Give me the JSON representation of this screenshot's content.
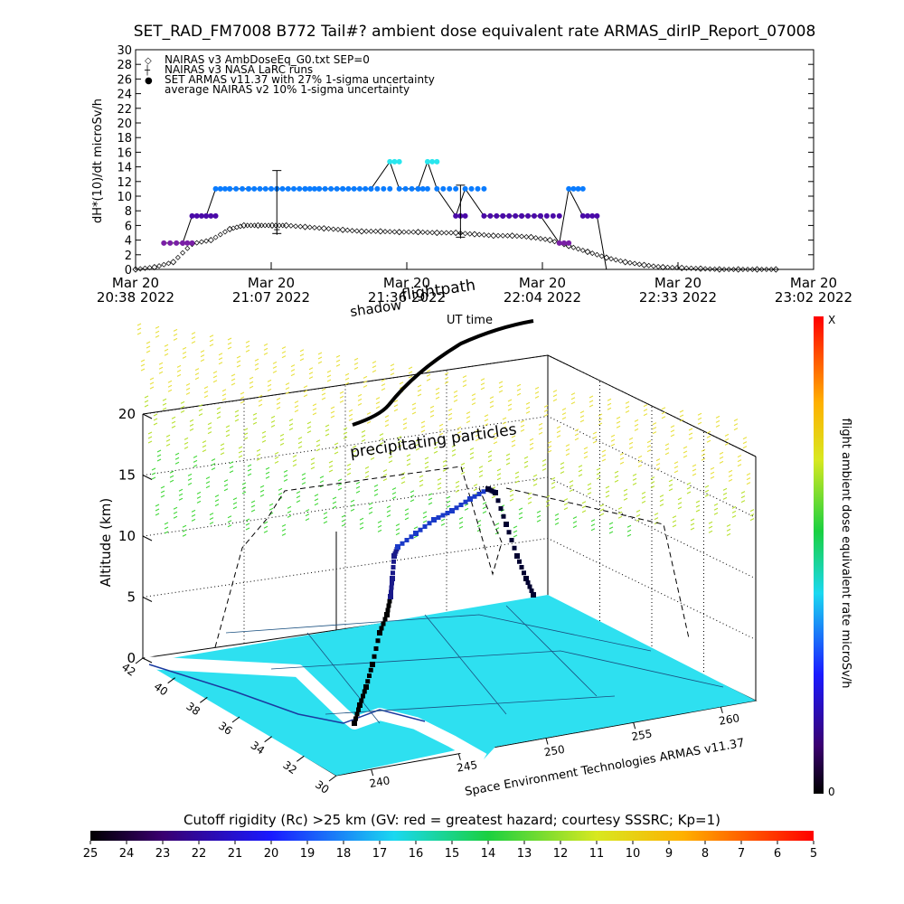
{
  "page_title": "SET_RAD_FM7008  B772 Tail#? ambient dose equivalent rate ARMAS_dirIP_Report_07008",
  "colors": {
    "armas_main": "#0a7cff",
    "armas_peak": "#28e6ee",
    "armas_low": "#4a0aa8",
    "armas_early": "#7a1fa6",
    "ground": "#2ee0f0",
    "ground_line": "#1a3aa0",
    "particles_top": "#e8e040",
    "particles_bottom": "#44d83a",
    "flightpath": "#000000"
  },
  "chart_data": [
    {
      "type": "scatter",
      "title": "SET_RAD_FM7008  B772 Tail#? ambient dose equivalent rate ARMAS_dirIP_Report_07008",
      "ylabel": "dH*(10)/dt microSv/h",
      "xlabel": "",
      "ylim": [
        0,
        30
      ],
      "yticks": [
        "0",
        "2",
        "4",
        "6",
        "8",
        "10",
        "12",
        "14",
        "16",
        "18",
        "20",
        "22",
        "24",
        "26",
        "28",
        "30"
      ],
      "xticks": [
        {
          "date": "Mar 20",
          "time": "20:38  2022"
        },
        {
          "date": "Mar 20",
          "time": "21:07  2022"
        },
        {
          "date": "Mar 20",
          "time": "21:36  2022"
        },
        {
          "date": "Mar 20",
          "time": "22:04  2022"
        },
        {
          "date": "Mar 20",
          "time": "22:33  2022"
        },
        {
          "date": "Mar 20",
          "time": "23:02  2022"
        }
      ],
      "legend": [
        {
          "symbol": "◇",
          "label": "NAIRAS v3 AmbDoseEq_G0.txt SEP=0"
        },
        {
          "symbol": "┼",
          "label": "NAIRAS v3 NASA LaRC runs"
        },
        {
          "symbol": "●",
          "label": "SET ARMAS v11.37 with 27% 1-sigma uncertainty"
        },
        {
          "symbol": "",
          "label": "average NAIRAS v2 10% 1-sigma uncertainty"
        }
      ],
      "legend_position": "top-left",
      "series": [
        {
          "name": "NAIRAS v3 AmbDoseEq_G0.txt SEP=0",
          "x": [
            "20:38",
            "20:42",
            "20:46",
            "20:50",
            "20:54",
            "20:58",
            "21:01",
            "21:04",
            "21:07",
            "21:10",
            "21:14",
            "21:18",
            "21:22",
            "21:26",
            "21:30",
            "21:34",
            "21:38",
            "21:42",
            "21:46",
            "21:50",
            "21:54",
            "21:58",
            "22:02",
            "22:06",
            "22:10",
            "22:14",
            "22:18",
            "22:22",
            "22:26",
            "22:30",
            "22:34",
            "22:38",
            "22:42",
            "22:46",
            "22:50",
            "22:54"
          ],
          "y": [
            0,
            0.3,
            1,
            3.5,
            4,
            5.5,
            6,
            6,
            6,
            6,
            5.8,
            5.6,
            5.4,
            5.2,
            5.2,
            5.1,
            5.1,
            5,
            5,
            4.8,
            4.6,
            4.6,
            4.4,
            4,
            3.2,
            2.4,
            1.6,
            1,
            0.6,
            0.3,
            0.2,
            0.1,
            0,
            0,
            0,
            0
          ]
        },
        {
          "name": "SET ARMAS v11.37 with 27% 1-sigma uncertainty",
          "x": [
            "20:44",
            "20:48",
            "20:50",
            "20:53",
            "20:55",
            "20:58",
            "21:02",
            "21:08",
            "21:14",
            "21:17",
            "21:22",
            "21:28",
            "21:32",
            "21:34",
            "21:38",
            "21:40",
            "21:42",
            "21:46",
            "21:48",
            "21:52",
            "21:56",
            "22:00",
            "22:04",
            "22:08",
            "22:10",
            "22:13",
            "22:16"
          ],
          "y": [
            3.6,
            3.6,
            7.3,
            7.3,
            11,
            11,
            11,
            11,
            11,
            11,
            11,
            11,
            14.7,
            11,
            11,
            14.7,
            11,
            7.3,
            11,
            7.3,
            7.3,
            7.3,
            7.3,
            3.6,
            11,
            7.3,
            7.3
          ]
        },
        {
          "name": "NAIRAS v3 NASA LaRC runs",
          "x": [
            "21:08",
            "21:47"
          ],
          "y": [
            5.5,
            5
          ]
        },
        {
          "name": "average NAIRAS v2 10% 1-sigma uncertainty",
          "x": [
            "21:08",
            "21:47"
          ],
          "y": [
            9,
            7
          ]
        }
      ]
    },
    {
      "type": "scatter",
      "title": "",
      "labels": {
        "shadow": "shadow",
        "flightpath": "flightpath",
        "ut_time": "UT time",
        "precip": "precipitating particles",
        "credit": "Space Environment Technologies ARMAS v11.37"
      },
      "zlabel": "Altitude (km)",
      "zticks": [
        "0",
        "5",
        "10",
        "15",
        "20"
      ],
      "lat_ticks": [
        "30",
        "32",
        "34",
        "36",
        "38",
        "40",
        "42"
      ],
      "lon_ticks": [
        "240",
        "245",
        "250",
        "255",
        "260"
      ],
      "lat_range": [
        30,
        42
      ],
      "lon_range": [
        238,
        262
      ],
      "z_range": [
        0,
        20
      ],
      "series": [
        {
          "name": "flightpath",
          "lon": [
            240.5,
            241.0,
            241.5,
            242.0,
            243.0,
            244.0,
            245.0,
            246.0,
            247.0,
            248.0,
            249.0,
            250.0,
            251.0,
            252.0,
            253.0,
            254.0,
            255.0,
            256.0,
            256.8
          ],
          "lat": [
            32.0,
            32.8,
            33.6,
            34.4,
            35.2,
            36.0,
            36.4,
            36.8,
            37.0,
            37.2,
            37.4,
            37.5,
            37.6,
            37.6,
            37.5,
            37.3,
            37.0,
            36.6,
            36.3
          ],
          "alt": [
            0.5,
            2.0,
            4.0,
            6.0,
            8.0,
            9.5,
            10.5,
            11.0,
            11.3,
            11.5,
            11.7,
            11.8,
            11.9,
            12.0,
            11.5,
            10.0,
            7.5,
            4.5,
            2.0
          ]
        }
      ],
      "colorbar_right": {
        "label": "flight ambient dose equivalent rate microSv/h",
        "top_label": "X",
        "bottom_label": "0"
      },
      "colorbar_bottom": {
        "label": "Cutoff rigidity (Rc) >25 km (GV: red = greatest hazard; courtesy SSSRC; Kp=1)",
        "ticks": [
          "25",
          "24",
          "23",
          "22",
          "21",
          "20",
          "19",
          "18",
          "17",
          "16",
          "15",
          "14",
          "13",
          "12",
          "11",
          "10",
          "9",
          "8",
          "7",
          "6",
          "5"
        ]
      }
    }
  ]
}
